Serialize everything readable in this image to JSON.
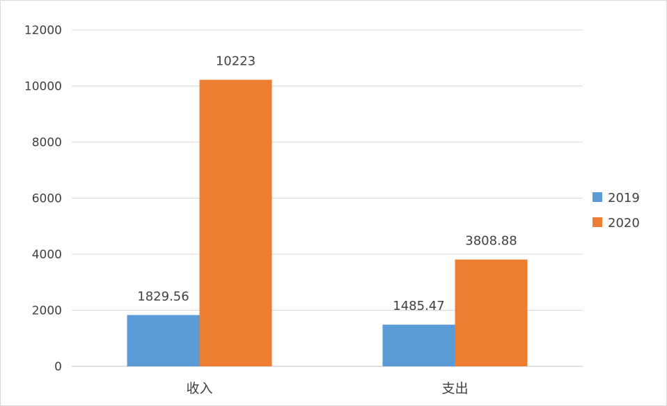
{
  "chart_data": {
    "type": "bar",
    "categories": [
      "收入",
      "支出"
    ],
    "series": [
      {
        "name": "2019",
        "values": [
          1829.56,
          1485.47
        ],
        "labels": [
          "1829.56",
          "1485.47"
        ],
        "color": "#5b9bd5"
      },
      {
        "name": "2020",
        "values": [
          10223,
          3808.88
        ],
        "labels": [
          "10223",
          "3808.88"
        ],
        "color": "#ed7d31"
      }
    ],
    "yticks": [
      "0",
      "2000",
      "4000",
      "6000",
      "8000",
      "10000",
      "12000"
    ],
    "ylim": [
      0,
      12000
    ],
    "grid": true,
    "legend": "right",
    "title": "",
    "xlabel": "",
    "ylabel": ""
  }
}
